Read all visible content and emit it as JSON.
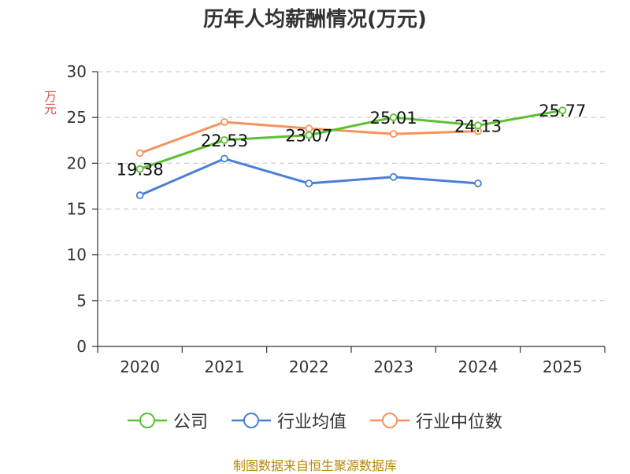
{
  "title": "历年人均薪酬情况(万元)",
  "source": "制图数据来自恒生聚源数据库",
  "chart_data": {
    "type": "line",
    "categories": [
      "2020",
      "2021",
      "2022",
      "2023",
      "2024",
      "2025"
    ],
    "ylabel": "万元",
    "ylim": [
      0,
      30
    ],
    "yticks": [
      0,
      5,
      10,
      15,
      20,
      25,
      30
    ],
    "grid": true,
    "legend_position": "bottom",
    "series": [
      {
        "name": "公司",
        "color": "#5cc132",
        "values": [
          19.38,
          22.53,
          23.07,
          25.01,
          24.13,
          25.77
        ],
        "labels": [
          "19.38",
          "22.53",
          "23.07",
          "25.01",
          "24.13",
          "25.77"
        ]
      },
      {
        "name": "行业均值",
        "color": "#4a7fd6",
        "values": [
          16.5,
          20.5,
          17.8,
          18.5,
          17.8,
          null
        ]
      },
      {
        "name": "行业中位数",
        "color": "#f4935c",
        "values": [
          21.1,
          24.5,
          23.8,
          23.2,
          23.5,
          null
        ]
      }
    ]
  }
}
